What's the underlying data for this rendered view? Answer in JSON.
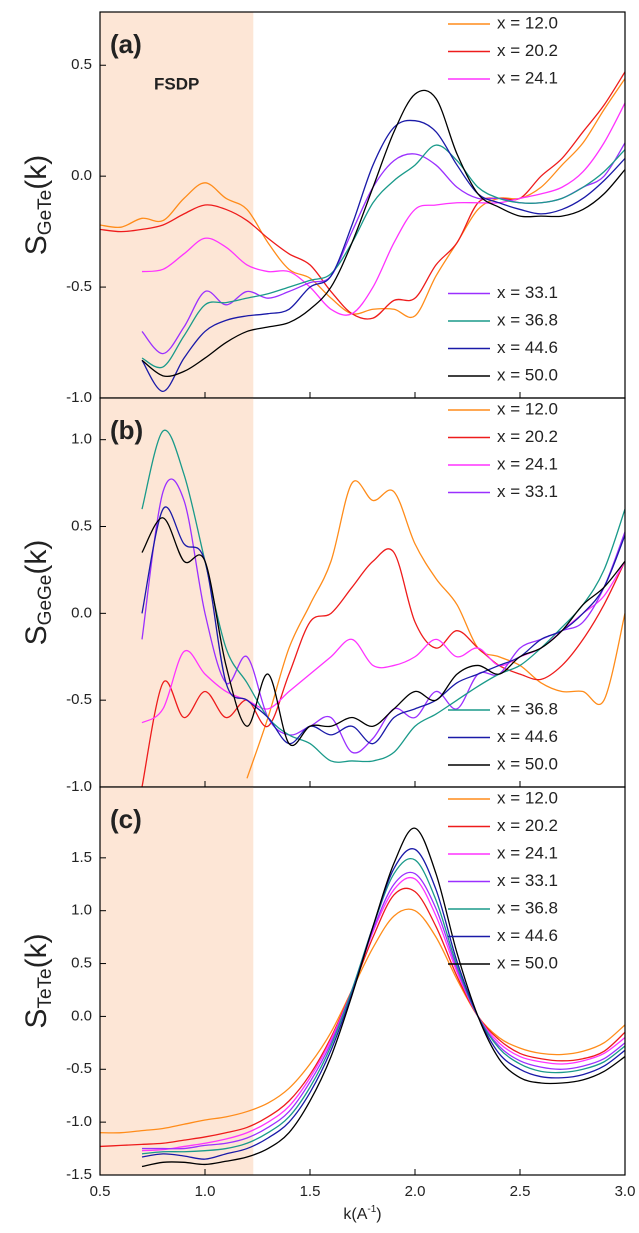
{
  "chart_data": [
    {
      "type": "line",
      "panel_label": "(a)",
      "ylabel": [
        "S",
        "GeTe",
        "(k)"
      ],
      "shade": [
        0.5,
        1.23
      ],
      "shade_color": "#fde6d6",
      "shade_label": "FSDP",
      "xlim": [
        0.5,
        3.0
      ],
      "xticks": [
        0.5,
        {
          "value": 1,
          "label": "1.0"
        },
        1.5,
        {
          "value": 2,
          "label": "2.0"
        },
        2.5,
        {
          "value": 3,
          "label": "3.0"
        }
      ],
      "ylim": [
        -1.0,
        0.74
      ],
      "yticks": [
        {
          "value": -1,
          "label": "-1.0"
        },
        -0.5,
        {
          "value": 0,
          "label": "0.0"
        },
        0.5
      ],
      "x": [
        0.5,
        0.6,
        0.7,
        0.8,
        0.9,
        1.0,
        1.1,
        1.2,
        1.3,
        1.4,
        1.5,
        1.6,
        1.7,
        1.8,
        1.9,
        2.0,
        2.1,
        2.2,
        2.3,
        2.4,
        2.5,
        2.6,
        2.7,
        2.8,
        2.9,
        3.0
      ],
      "series": [
        {
          "name": "x = 12.0",
          "color": "#ff8c1a",
          "legend": "upper right",
          "values": [
            -0.22,
            -0.23,
            -0.19,
            -0.2,
            -0.1,
            -0.03,
            -0.1,
            -0.15,
            -0.3,
            -0.42,
            -0.46,
            -0.55,
            -0.62,
            -0.6,
            -0.6,
            -0.63,
            -0.45,
            -0.3,
            -0.15,
            -0.1,
            -0.1,
            -0.05,
            0.05,
            0.15,
            0.3,
            0.44
          ]
        },
        {
          "name": "x = 20.2",
          "color": "#ee1c1c",
          "legend": "upper right",
          "values": [
            -0.24,
            -0.25,
            -0.24,
            -0.22,
            -0.17,
            -0.13,
            -0.15,
            -0.2,
            -0.28,
            -0.35,
            -0.4,
            -0.52,
            -0.62,
            -0.64,
            -0.56,
            -0.55,
            -0.4,
            -0.3,
            -0.12,
            -0.1,
            -0.1,
            0,
            0.08,
            0.2,
            0.32,
            0.47
          ]
        },
        {
          "name": "x = 24.1",
          "color": "#ff33ff",
          "legend": "upper right",
          "values": [
            null,
            null,
            -0.43,
            -0.42,
            -0.35,
            -0.28,
            -0.32,
            -0.4,
            -0.43,
            -0.43,
            -0.5,
            -0.6,
            -0.62,
            -0.5,
            -0.3,
            -0.15,
            -0.13,
            -0.12,
            -0.12,
            -0.12,
            -0.1,
            -0.08,
            -0.05,
            0.02,
            0.15,
            0.33
          ]
        },
        {
          "name": "x = 33.1",
          "color": "#9b30ff",
          "legend": "lower right",
          "values": [
            null,
            null,
            -0.7,
            -0.8,
            -0.68,
            -0.52,
            -0.58,
            -0.52,
            -0.55,
            -0.52,
            -0.48,
            -0.45,
            -0.25,
            -0.05,
            0.07,
            0.1,
            0.05,
            -0.05,
            -0.1,
            -0.1,
            -0.12,
            -0.12,
            -0.1,
            -0.05,
            0,
            0.15
          ]
        },
        {
          "name": "x = 36.8",
          "color": "#1a9a8a",
          "legend": "lower right",
          "values": [
            null,
            null,
            -0.82,
            -0.86,
            -0.72,
            -0.58,
            -0.57,
            -0.55,
            -0.53,
            -0.5,
            -0.47,
            -0.44,
            -0.3,
            -0.12,
            -0.02,
            0.05,
            0.14,
            0.07,
            -0.05,
            -0.1,
            -0.12,
            -0.12,
            -0.1,
            -0.05,
            0.02,
            0.12
          ]
        },
        {
          "name": "x = 44.6",
          "color": "#1a1aa8",
          "legend": "lower right",
          "values": [
            null,
            null,
            -0.83,
            -0.97,
            -0.82,
            -0.7,
            -0.65,
            -0.63,
            -0.62,
            -0.6,
            -0.5,
            -0.45,
            -0.22,
            0.05,
            0.22,
            0.25,
            0.2,
            0.05,
            -0.08,
            -0.12,
            -0.15,
            -0.17,
            -0.15,
            -0.1,
            -0.02,
            0.08
          ]
        },
        {
          "name": "x = 50.0",
          "color": "#000000",
          "legend": "lower right",
          "values": [
            null,
            null,
            -0.83,
            -0.9,
            -0.88,
            -0.82,
            -0.75,
            -0.7,
            -0.68,
            -0.66,
            -0.6,
            -0.5,
            -0.3,
            -0.05,
            0.2,
            0.37,
            0.35,
            0.1,
            -0.08,
            -0.14,
            -0.18,
            -0.18,
            -0.18,
            -0.15,
            -0.08,
            0.03
          ]
        }
      ]
    },
    {
      "type": "line",
      "panel_label": "(b)",
      "ylabel": [
        "S",
        "GeGe",
        "(k)"
      ],
      "shade": [
        0.5,
        1.23
      ],
      "shade_color": "#fde6d6",
      "xlim": [
        0.5,
        3.0
      ],
      "xticks": [
        0.5,
        {
          "value": 1,
          "label": "1.0"
        },
        1.5,
        {
          "value": 2,
          "label": "2.0"
        },
        2.5,
        {
          "value": 3,
          "label": "3.0"
        }
      ],
      "ylim": [
        -1.0,
        1.24
      ],
      "yticks": [
        {
          "value": -1,
          "label": "-1.0"
        },
        -0.5,
        {
          "value": 0,
          "label": "0.0"
        },
        0.5,
        {
          "value": 1,
          "label": "1.0"
        }
      ],
      "x": [
        0.5,
        0.6,
        0.7,
        0.8,
        0.9,
        1.0,
        1.1,
        1.2,
        1.3,
        1.4,
        1.5,
        1.6,
        1.7,
        1.8,
        1.9,
        2.0,
        2.1,
        2.2,
        2.3,
        2.4,
        2.5,
        2.6,
        2.7,
        2.8,
        2.9,
        3.0
      ],
      "series": [
        {
          "name": "x = 12.0",
          "color": "#ff8c1a",
          "legend": "upper right",
          "values": [
            null,
            null,
            null,
            null,
            null,
            null,
            null,
            -0.95,
            -0.6,
            -0.2,
            0.05,
            0.3,
            0.75,
            0.65,
            0.7,
            0.4,
            0.2,
            0.05,
            -0.2,
            -0.25,
            -0.3,
            -0.4,
            -0.45,
            -0.45,
            -0.5,
            0
          ]
        },
        {
          "name": "x = 20.2",
          "color": "#ee1c1c",
          "legend": "upper right",
          "values": [
            null,
            null,
            -1,
            -0.4,
            -0.6,
            -0.45,
            -0.6,
            -0.5,
            -0.65,
            -0.35,
            -0.05,
            0,
            0.15,
            0.3,
            0.35,
            -0.05,
            -0.2,
            -0.1,
            -0.2,
            -0.3,
            -0.35,
            -0.38,
            -0.3,
            -0.15,
            0.05,
            0.3
          ]
        },
        {
          "name": "x = 24.1",
          "color": "#ff33ff",
          "legend": "upper right",
          "values": [
            null,
            null,
            -0.63,
            -0.55,
            -0.22,
            -0.35,
            -0.45,
            -0.5,
            -0.55,
            -0.45,
            -0.35,
            -0.25,
            -0.15,
            -0.3,
            -0.3,
            -0.25,
            -0.15,
            -0.25,
            -0.2,
            -0.3,
            -0.25,
            -0.2,
            -0.1,
            0,
            0.1,
            0.3
          ]
        },
        {
          "name": "x = 33.1",
          "color": "#9b30ff",
          "legend": "upper right",
          "values": [
            null,
            null,
            -0.15,
            0.7,
            0.65,
            0,
            -0.4,
            -0.25,
            -0.6,
            -0.7,
            -0.65,
            -0.6,
            -0.8,
            -0.72,
            -0.55,
            -0.6,
            -0.45,
            -0.55,
            -0.35,
            -0.35,
            -0.2,
            -0.15,
            -0.1,
            -0.05,
            0.15,
            0.47
          ]
        },
        {
          "name": "x = 36.8",
          "color": "#1a9a8a",
          "legend": "lower right",
          "values": [
            null,
            null,
            0.6,
            1.05,
            0.8,
            0.3,
            -0.2,
            -0.4,
            -0.6,
            -0.7,
            -0.75,
            -0.85,
            -0.85,
            -0.85,
            -0.8,
            -0.65,
            -0.58,
            -0.5,
            -0.42,
            -0.35,
            -0.3,
            -0.2,
            -0.08,
            0.05,
            0.25,
            0.6
          ]
        },
        {
          "name": "x = 44.6",
          "color": "#1a1aa8",
          "legend": "lower right",
          "values": [
            null,
            null,
            0,
            0.6,
            0.4,
            0.3,
            -0.4,
            -0.5,
            -0.6,
            -0.75,
            -0.65,
            -0.7,
            -0.65,
            -0.75,
            -0.6,
            -0.55,
            -0.5,
            -0.4,
            -0.35,
            -0.3,
            -0.25,
            -0.15,
            -0.1,
            0,
            0.15,
            0.45
          ]
        },
        {
          "name": "x = 50.0",
          "color": "#000000",
          "legend": "lower right",
          "values": [
            null,
            null,
            0.35,
            0.55,
            0.3,
            0.3,
            -0.3,
            -0.65,
            -0.35,
            -0.75,
            -0.65,
            -0.65,
            -0.6,
            -0.65,
            -0.55,
            -0.45,
            -0.5,
            -0.35,
            -0.3,
            -0.35,
            -0.25,
            -0.2,
            -0.1,
            0.05,
            0.15,
            0.3
          ]
        }
      ]
    },
    {
      "type": "line",
      "panel_label": "(c)",
      "ylabel": [
        "S",
        "TeTe",
        "(k)"
      ],
      "xlabel": [
        "k(A",
        "-1",
        ")"
      ],
      "shade": [
        0.5,
        1.23
      ],
      "shade_color": "#fde6d6",
      "xlim": [
        0.5,
        3.0
      ],
      "xticks": [
        0.5,
        {
          "value": 1,
          "label": "1.0"
        },
        1.5,
        {
          "value": 2,
          "label": "2.0"
        },
        2.5,
        {
          "value": 3,
          "label": "3.0"
        }
      ],
      "ylim": [
        -1.5,
        2.17
      ],
      "yticks": [
        -1.5,
        {
          "value": -1,
          "label": "-1.0"
        },
        -0.5,
        {
          "value": 0,
          "label": "0.0"
        },
        0.5,
        {
          "value": 1,
          "label": "1.0"
        },
        1.5
      ],
      "x": [
        0.5,
        0.6,
        0.7,
        0.8,
        0.9,
        1.0,
        1.1,
        1.2,
        1.3,
        1.4,
        1.5,
        1.6,
        1.7,
        1.8,
        1.9,
        2.0,
        2.1,
        2.2,
        2.3,
        2.4,
        2.5,
        2.6,
        2.7,
        2.8,
        2.9,
        3.0
      ],
      "series": [
        {
          "name": "x = 12.0",
          "color": "#ff8c1a",
          "legend": "upper right",
          "values": [
            -1.1,
            -1.1,
            -1.08,
            -1.06,
            -1.02,
            -0.98,
            -0.95,
            -0.9,
            -0.82,
            -0.68,
            -0.45,
            -0.15,
            0.25,
            0.65,
            0.95,
            1.0,
            0.75,
            0.35,
            0,
            -0.2,
            -0.3,
            -0.35,
            -0.36,
            -0.33,
            -0.25,
            -0.08
          ]
        },
        {
          "name": "x = 20.2",
          "color": "#ee1c1c",
          "legend": "upper right",
          "values": [
            -1.23,
            -1.22,
            -1.21,
            -1.2,
            -1.17,
            -1.14,
            -1.1,
            -1.05,
            -0.95,
            -0.8,
            -0.55,
            -0.2,
            0.25,
            0.75,
            1.15,
            1.18,
            0.85,
            0.38,
            0,
            -0.22,
            -0.35,
            -0.4,
            -0.42,
            -0.4,
            -0.33,
            -0.15
          ]
        },
        {
          "name": "x = 24.1",
          "color": "#ff33ff",
          "legend": "upper right",
          "values": [
            null,
            null,
            -1.27,
            -1.26,
            -1.23,
            -1.2,
            -1.16,
            -1.1,
            -1.0,
            -0.85,
            -0.58,
            -0.22,
            0.25,
            0.8,
            1.2,
            1.3,
            0.95,
            0.42,
            0,
            -0.25,
            -0.38,
            -0.43,
            -0.45,
            -0.42,
            -0.35,
            -0.2
          ]
        },
        {
          "name": "x = 33.1",
          "color": "#9b30ff",
          "legend": "upper right",
          "values": [
            null,
            null,
            -1.25,
            -1.25,
            -1.25,
            -1.22,
            -1.2,
            -1.15,
            -1.05,
            -0.9,
            -0.62,
            -0.25,
            0.25,
            0.82,
            1.25,
            1.35,
            1.02,
            0.45,
            0,
            -0.28,
            -0.42,
            -0.48,
            -0.5,
            -0.47,
            -0.4,
            -0.25
          ]
        },
        {
          "name": "x = 36.8",
          "color": "#1a9a8a",
          "legend": "upper right",
          "values": [
            null,
            null,
            -1.3,
            -1.28,
            -1.28,
            -1.27,
            -1.25,
            -1.2,
            -1.1,
            -0.95,
            -0.67,
            -0.28,
            0.25,
            0.85,
            1.35,
            1.48,
            1.1,
            0.48,
            0,
            -0.3,
            -0.45,
            -0.52,
            -0.53,
            -0.5,
            -0.43,
            -0.28
          ]
        },
        {
          "name": "x = 44.6",
          "color": "#1a1aa8",
          "legend": "upper right",
          "values": [
            null,
            null,
            -1.33,
            -1.3,
            -1.32,
            -1.35,
            -1.3,
            -1.25,
            -1.15,
            -1.0,
            -0.72,
            -0.32,
            0.22,
            0.85,
            1.4,
            1.58,
            1.2,
            0.52,
            0,
            -0.35,
            -0.5,
            -0.57,
            -0.58,
            -0.55,
            -0.47,
            -0.32
          ]
        },
        {
          "name": "x = 50.0",
          "color": "#000000",
          "legend": "upper right",
          "values": [
            null,
            null,
            -1.42,
            -1.38,
            -1.38,
            -1.4,
            -1.37,
            -1.33,
            -1.25,
            -1.1,
            -0.8,
            -0.38,
            0.2,
            0.85,
            1.45,
            1.78,
            1.35,
            0.6,
            0,
            -0.4,
            -0.58,
            -0.63,
            -0.63,
            -0.6,
            -0.52,
            -0.38
          ]
        }
      ]
    }
  ]
}
